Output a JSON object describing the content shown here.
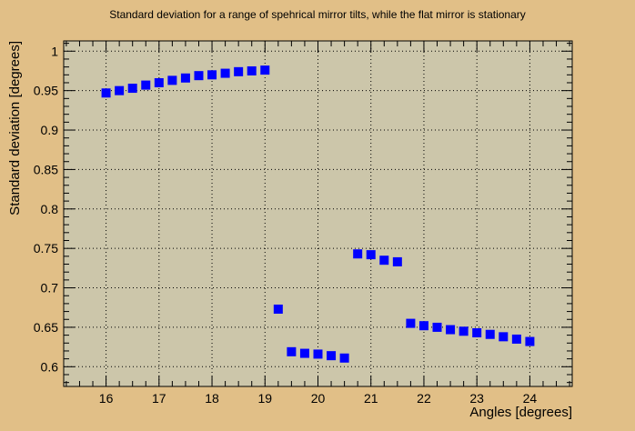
{
  "chart_data": {
    "type": "scatter",
    "title": "Standard deviation for a range of spehrical mirror tilts, while the flat mirror is stationary",
    "xlabel": "Angles [degrees]",
    "ylabel": "Standard deviation [degrees]",
    "xlim": [
      15.2,
      24.8
    ],
    "ylim": [
      0.575,
      1.013
    ],
    "x_ticks": [
      16,
      17,
      18,
      19,
      20,
      21,
      22,
      23,
      24
    ],
    "x_tick_labels": [
      "16",
      "17",
      "18",
      "19",
      "20",
      "21",
      "22",
      "23",
      "24"
    ],
    "y_ticks": [
      0.6,
      0.65,
      0.7,
      0.75,
      0.8,
      0.85,
      0.9,
      0.95,
      1
    ],
    "y_tick_labels": [
      "0.6",
      "0.65",
      "0.7",
      "0.75",
      "0.8",
      "0.85",
      "0.9",
      "0.95",
      "1"
    ],
    "grid": true,
    "marker": "square",
    "colors": {
      "frame": "#e1bf87",
      "plot_area": "#ccc6aa",
      "marker": "#0000ff",
      "axis": "#000000"
    },
    "series": [
      {
        "x": [
          16,
          16.25,
          16.5,
          16.75,
          17,
          17.25,
          17.5,
          17.75,
          18,
          18.25,
          18.5,
          18.75,
          19,
          19.25,
          19.5,
          19.75,
          20,
          20.25,
          20.5,
          20.75,
          21,
          21.25,
          21.5,
          21.75,
          22,
          22.25,
          22.5,
          22.75,
          23,
          23.25,
          23.5,
          23.75,
          24
        ],
        "y": [
          0.947,
          0.95,
          0.953,
          0.957,
          0.96,
          0.963,
          0.966,
          0.969,
          0.97,
          0.972,
          0.974,
          0.975,
          0.976,
          0.673,
          0.619,
          0.617,
          0.616,
          0.614,
          0.611,
          0.743,
          0.742,
          0.735,
          0.733,
          0.655,
          0.652,
          0.65,
          0.647,
          0.645,
          0.643,
          0.641,
          0.638,
          0.635,
          0.632
        ]
      }
    ]
  }
}
